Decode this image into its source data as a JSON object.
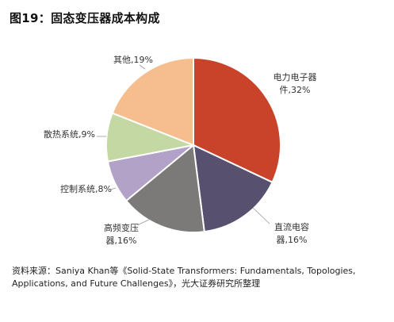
{
  "figure_title": "图19：固态变压器成本构成",
  "source_note": "资料来源：Saniya Khan等《Solid-State Transformers: Fundamentals, Topologies, Applications, and Future Challenges》，光大证券研究所整理",
  "chart_data": {
    "type": "pie",
    "title": "",
    "slices": [
      {
        "label_lines": [
          "电力电子器",
          "件,32%"
        ],
        "value": 32,
        "color": "#c9432a"
      },
      {
        "label_lines": [
          "直流电容",
          "器,16%"
        ],
        "value": 16,
        "color": "#57506e"
      },
      {
        "label_lines": [
          "高频变压",
          "器,16%"
        ],
        "value": 16,
        "color": "#7c7a78"
      },
      {
        "label_lines": [
          "控制系统,8%"
        ],
        "value": 8,
        "color": "#b3a2c8"
      },
      {
        "label_lines": [
          "散热系统,9%"
        ],
        "value": 9,
        "color": "#c3d8a2"
      },
      {
        "label_lines": [
          "其他,19%"
        ],
        "value": 19,
        "color": "#f6bd8e"
      }
    ]
  }
}
